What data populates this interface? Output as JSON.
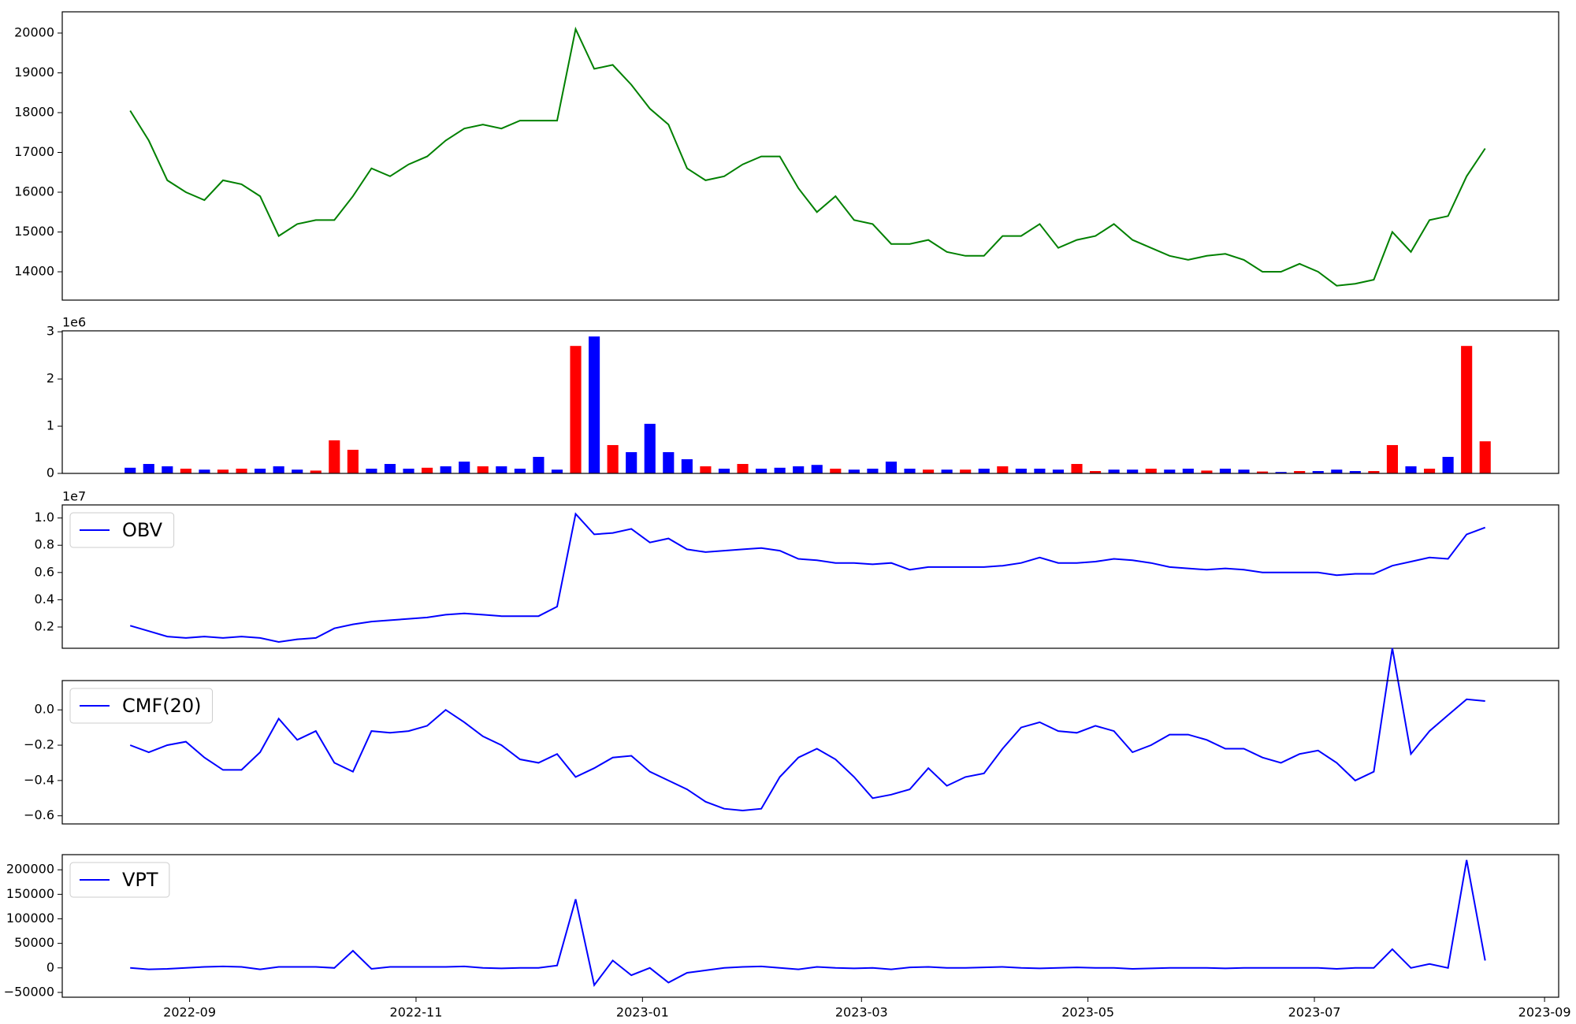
{
  "chart_data": [
    {
      "type": "line",
      "color": "#008000",
      "ylim": [
        13288,
        20534
      ],
      "yticks": [
        14000,
        15000,
        16000,
        17000,
        18000,
        19000,
        20000
      ],
      "values": [
        18050,
        17300,
        16300,
        16000,
        15800,
        16300,
        16200,
        15900,
        14900,
        15200,
        15300,
        15300,
        15900,
        16600,
        16400,
        16700,
        16900,
        17300,
        17600,
        17700,
        17600,
        17800,
        17800,
        17800,
        20100,
        19100,
        19200,
        18700,
        18100,
        17700,
        16600,
        16300,
        16400,
        16700,
        16900,
        16900,
        16100,
        15500,
        15900,
        15300,
        15200,
        14700,
        14700,
        14800,
        14500,
        14400,
        14400,
        14900,
        14900,
        15200,
        14600,
        14800,
        14900,
        15200,
        14800,
        14600,
        14400,
        14300,
        14400,
        14450,
        14300,
        14000,
        14000,
        14200,
        14000,
        13650,
        13700,
        13800,
        15000,
        14500,
        15300,
        15400,
        16400,
        17100
      ]
    },
    {
      "type": "bar",
      "ylim": [
        0,
        3.02
      ],
      "yticks": [
        0,
        1,
        2,
        3
      ],
      "offset_label": "1e6",
      "values": [
        0.12,
        0.2,
        0.15,
        0.1,
        0.08,
        0.08,
        0.1,
        0.1,
        0.15,
        0.08,
        0.06,
        0.7,
        0.5,
        0.1,
        0.2,
        0.1,
        0.12,
        0.15,
        0.25,
        0.15,
        0.15,
        0.1,
        0.35,
        0.08,
        2.7,
        2.9,
        0.6,
        0.45,
        1.05,
        0.45,
        0.3,
        0.15,
        0.1,
        0.2,
        0.1,
        0.12,
        0.15,
        0.18,
        0.1,
        0.08,
        0.1,
        0.25,
        0.1,
        0.08,
        0.08,
        0.08,
        0.1,
        0.15,
        0.1,
        0.1,
        0.08,
        0.2,
        0.05,
        0.08,
        0.08,
        0.1,
        0.08,
        0.1,
        0.06,
        0.1,
        0.08,
        0.04,
        0.03,
        0.05,
        0.05,
        0.08,
        0.05,
        0.05,
        0.6,
        0.15,
        0.1,
        0.35,
        2.7,
        0.68
      ],
      "colors": [
        "#0000ff",
        "#0000ff",
        "#0000ff",
        "#ff0000",
        "#0000ff",
        "#ff0000",
        "#ff0000",
        "#0000ff",
        "#0000ff",
        "#0000ff",
        "#ff0000",
        "#ff0000",
        "#ff0000",
        "#0000ff",
        "#0000ff",
        "#0000ff",
        "#ff0000",
        "#0000ff",
        "#0000ff",
        "#ff0000",
        "#0000ff",
        "#0000ff",
        "#0000ff",
        "#0000ff",
        "#ff0000",
        "#0000ff",
        "#ff0000",
        "#0000ff",
        "#0000ff",
        "#0000ff",
        "#0000ff",
        "#ff0000",
        "#0000ff",
        "#ff0000",
        "#0000ff",
        "#0000ff",
        "#0000ff",
        "#0000ff",
        "#ff0000",
        "#0000ff",
        "#0000ff",
        "#0000ff",
        "#0000ff",
        "#ff0000",
        "#0000ff",
        "#ff0000",
        "#0000ff",
        "#ff0000",
        "#0000ff",
        "#0000ff",
        "#0000ff",
        "#ff0000",
        "#ff0000",
        "#0000ff",
        "#0000ff",
        "#ff0000",
        "#0000ff",
        "#0000ff",
        "#ff0000",
        "#0000ff",
        "#0000ff",
        "#ff0000",
        "#0000ff",
        "#ff0000",
        "#0000ff",
        "#0000ff",
        "#0000ff",
        "#ff0000",
        "#ff0000",
        "#0000ff",
        "#ff0000",
        "#0000ff",
        "#ff0000",
        "#ff0000"
      ]
    },
    {
      "type": "line",
      "ylim": [
        0.044,
        1.096
      ],
      "yticks": [
        0.2,
        0.4,
        0.6,
        0.8,
        {
          "value": 1,
          "label": "1.0"
        }
      ],
      "offset_label": "1e7",
      "legend": "upper left",
      "series": [
        {
          "name": "OBV",
          "color": "#0000ff",
          "values": [
            0.21,
            0.17,
            0.13,
            0.12,
            0.13,
            0.12,
            0.13,
            0.12,
            0.09,
            0.11,
            0.12,
            0.19,
            0.22,
            0.24,
            0.25,
            0.26,
            0.27,
            0.29,
            0.3,
            0.29,
            0.28,
            0.28,
            0.28,
            0.35,
            1.03,
            0.88,
            0.89,
            0.92,
            0.82,
            0.85,
            0.77,
            0.75,
            0.76,
            0.77,
            0.78,
            0.76,
            0.7,
            0.69,
            0.67,
            0.67,
            0.66,
            0.67,
            0.62,
            0.64,
            0.64,
            0.64,
            0.64,
            0.65,
            0.67,
            0.71,
            0.67,
            0.67,
            0.68,
            0.7,
            0.69,
            0.67,
            0.64,
            0.63,
            0.62,
            0.63,
            0.62,
            0.6,
            0.6,
            0.6,
            0.6,
            0.58,
            0.59,
            0.59,
            0.65,
            0.68,
            0.71,
            0.7,
            0.88,
            0.93
          ]
        }
      ]
    },
    {
      "type": "line",
      "ylim": [
        -0.646,
        0.166
      ],
      "yticks": [
        {
          "value": -0.6,
          "label": "−0.6"
        },
        {
          "value": -0.4,
          "label": "−0.4"
        },
        {
          "value": -0.2,
          "label": "−0.2"
        },
        {
          "value": 0,
          "label": "0.0"
        }
      ],
      "legend": "upper left",
      "series": [
        {
          "name": "CMF(20)",
          "color": "#0000ff",
          "values": [
            -0.2,
            -0.24,
            -0.2,
            -0.18,
            -0.27,
            -0.34,
            -0.34,
            -0.24,
            -0.05,
            -0.17,
            -0.12,
            -0.3,
            -0.35,
            -0.12,
            -0.13,
            -0.12,
            -0.09,
            0,
            -0.07,
            -0.15,
            -0.2,
            -0.28,
            -0.3,
            -0.25,
            -0.38,
            -0.33,
            -0.27,
            -0.26,
            -0.35,
            -0.4,
            -0.45,
            -0.52,
            -0.56,
            -0.57,
            -0.56,
            -0.38,
            -0.27,
            -0.22,
            -0.28,
            -0.38,
            -0.5,
            -0.48,
            -0.45,
            -0.33,
            -0.43,
            -0.38,
            -0.36,
            -0.22,
            -0.1,
            -0.07,
            -0.12,
            -0.13,
            -0.09,
            -0.12,
            -0.24,
            -0.2,
            -0.14,
            -0.14,
            -0.17,
            -0.22,
            -0.22,
            -0.27,
            -0.3,
            -0.25,
            -0.23,
            -0.3,
            -0.4,
            -0.35,
            0.35,
            -0.25,
            -0.12,
            -0.03,
            0.06,
            0.05
          ]
        }
      ]
    },
    {
      "type": "line",
      "ylim": [
        -59800,
        230900
      ],
      "yticks": [
        {
          "value": -50000,
          "label": "−50000"
        },
        0,
        50000,
        100000,
        150000,
        200000
      ],
      "legend": "upper left",
      "series": [
        {
          "name": "VPT",
          "color": "#0000ff",
          "values": [
            0,
            -3000,
            -2000,
            0,
            2000,
            3000,
            2000,
            -3000,
            2000,
            2000,
            2000,
            0,
            35000,
            -2000,
            2000,
            2000,
            2000,
            2000,
            3000,
            0,
            -1000,
            0,
            0,
            5000,
            140000,
            -35000,
            15000,
            -15000,
            0,
            -30000,
            -10000,
            -5000,
            0,
            2000,
            3000,
            0,
            -3000,
            2000,
            0,
            -1000,
            0,
            -3000,
            1000,
            2000,
            0,
            0,
            1000,
            2000,
            0,
            -1000,
            0,
            1000,
            0,
            0,
            -2000,
            -1000,
            0,
            0,
            0,
            -1000,
            0,
            0,
            0,
            0,
            0,
            -2000,
            0,
            0,
            38000,
            0,
            8000,
            0,
            220000,
            15000
          ]
        }
      ],
      "xlim": [
        19201.7,
        19604.8
      ],
      "xticks": [
        {
          "value": 19236,
          "label": "2022-09"
        },
        {
          "value": 19297,
          "label": "2022-11"
        },
        {
          "value": 19358,
          "label": "2023-01"
        },
        {
          "value": 19417,
          "label": "2023-03"
        },
        {
          "value": 19478,
          "label": "2023-05"
        },
        {
          "value": 19539,
          "label": "2023-07"
        },
        {
          "value": 19601,
          "label": "2023-09"
        }
      ],
      "x": [
        19220,
        19225,
        19230,
        19235,
        19240,
        19245,
        19250,
        19255,
        19260,
        19265,
        19270,
        19275,
        19280,
        19285,
        19290,
        19295,
        19300,
        19305,
        19310,
        19315,
        19320,
        19325,
        19330,
        19335,
        19340,
        19345,
        19350,
        19355,
        19360,
        19365,
        19370,
        19375,
        19380,
        19385,
        19390,
        19395,
        19400,
        19405,
        19410,
        19415,
        19420,
        19425,
        19430,
        19435,
        19440,
        19445,
        19450,
        19455,
        19460,
        19465,
        19470,
        19475,
        19480,
        19485,
        19490,
        19495,
        19500,
        19505,
        19510,
        19515,
        19520,
        19525,
        19530,
        19535,
        19540,
        19545,
        19550,
        19555,
        19560,
        19565,
        19570,
        19575,
        19580,
        19585
      ]
    }
  ]
}
